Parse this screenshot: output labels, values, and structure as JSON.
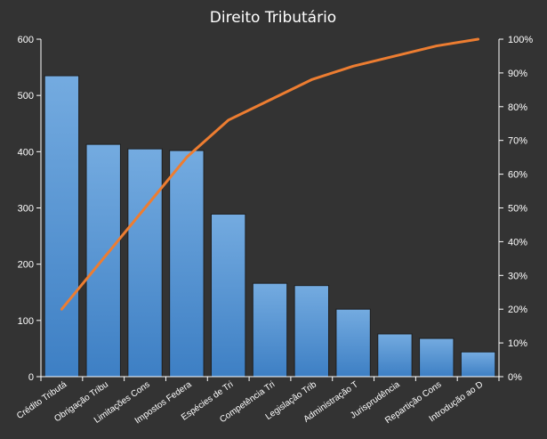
{
  "chart_data": {
    "type": "bar",
    "title": "Direito  Tributário",
    "categories": [
      "Crédito Tributá",
      "Obrigação Tribu",
      "Limitações Cons",
      "Impostos Federa",
      "Espécies de Tri",
      "Competência Tri",
      "Legislação Trib",
      "Administração T",
      "Jurisprudência",
      "Repartição Cons",
      "Introdução ao D"
    ],
    "series": [
      {
        "type": "bar",
        "values": [
          535,
          413,
          405,
          402,
          289,
          166,
          162,
          120,
          76,
          68,
          44
        ],
        "color": "#5b9bd5"
      },
      {
        "type": "line",
        "axis": "right",
        "values": [
          20,
          35,
          50,
          65,
          76,
          82,
          88,
          92,
          95,
          98,
          100
        ],
        "color": "#ed7d31"
      }
    ],
    "y_left": {
      "ylim": [
        0,
        600
      ],
      "ticks": [
        "0",
        "100",
        "200",
        "300",
        "400",
        "500",
        "600"
      ]
    },
    "y_right": {
      "ylim": [
        0,
        100
      ],
      "ticks": [
        "0%",
        "10%",
        "20%",
        "30%",
        "40%",
        "50%",
        "60%",
        "70%",
        "80%",
        "90%",
        "100%"
      ]
    },
    "grid": false,
    "legend": "none",
    "colors": {
      "background": "#333333",
      "axis": "#ffffff"
    }
  }
}
